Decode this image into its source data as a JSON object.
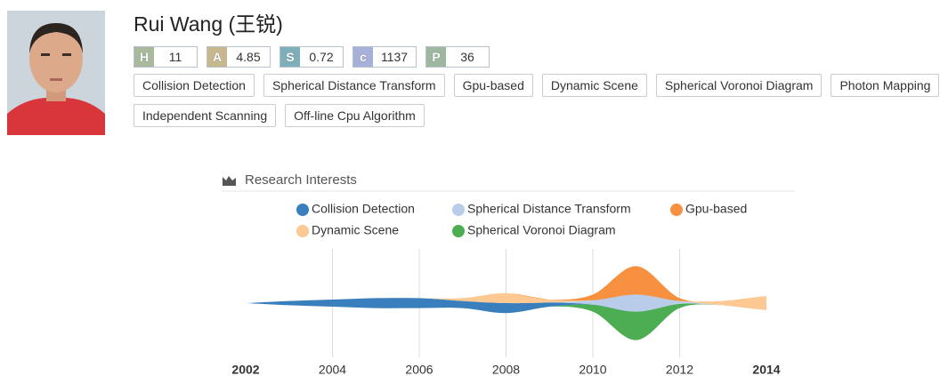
{
  "profile": {
    "name": "Rui Wang (王锐)",
    "metrics": [
      {
        "key": "H",
        "value": "11",
        "color": "#a9ba9c"
      },
      {
        "key": "A",
        "value": "4.85",
        "color": "#c6b78f"
      },
      {
        "key": "S",
        "value": "0.72",
        "color": "#7eafb9"
      },
      {
        "key": "c",
        "value": "1137",
        "color": "#a7b0d9"
      },
      {
        "key": "P",
        "value": "36",
        "color": "#9db89e"
      }
    ],
    "tags": [
      "Collision Detection",
      "Spherical Distance Transform",
      "Gpu-based",
      "Dynamic Scene",
      "Spherical Voronoi Diagram",
      "Photon Mapping",
      "Independent Scanning",
      "Off-line Cpu Algorithm"
    ]
  },
  "chart_data": {
    "type": "streamgraph",
    "title": "Research Interests",
    "x": [
      2002,
      2003,
      2004,
      2005,
      2006,
      2007,
      2008,
      2009,
      2010,
      2011,
      2012,
      2013,
      2014
    ],
    "xticks": [
      2002,
      2004,
      2006,
      2008,
      2010,
      2012,
      2014
    ],
    "series": [
      {
        "name": "Collision Detection",
        "color": "#3a7fbd",
        "values": [
          0,
          6,
          10,
          14,
          14,
          10,
          14,
          6,
          0,
          0,
          0,
          0,
          0
        ]
      },
      {
        "name": "Spherical Distance Transform",
        "color": "#b9cce9",
        "values": [
          0,
          0,
          0,
          0,
          0,
          0,
          0,
          0,
          6,
          24,
          4,
          0,
          0
        ]
      },
      {
        "name": "Gpu-based",
        "color": "#f7913f",
        "values": [
          0,
          0,
          0,
          0,
          0,
          0,
          0,
          0,
          8,
          40,
          4,
          0,
          0
        ]
      },
      {
        "name": "Dynamic Scene",
        "color": "#fdc892",
        "values": [
          0,
          0,
          0,
          0,
          0,
          4,
          14,
          4,
          0,
          0,
          0,
          6,
          20
        ]
      },
      {
        "name": "Spherical Voronoi Diagram",
        "color": "#4cad53",
        "values": [
          0,
          0,
          0,
          0,
          0,
          0,
          0,
          0,
          10,
          40,
          6,
          0,
          0
        ]
      }
    ]
  }
}
